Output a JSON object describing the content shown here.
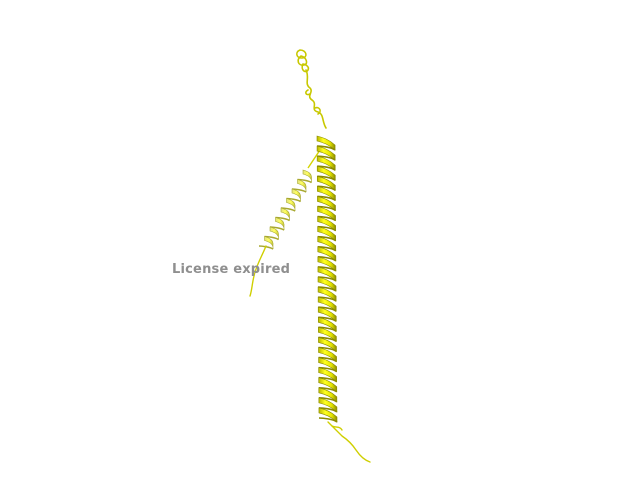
{
  "viewer": {
    "watermark_text": "License expired",
    "background_color": "#ffffff",
    "cartoon_color": "#f2f200",
    "cartoon_shade_color": "#9a9a00",
    "watermark_color": "#8f8f8f"
  }
}
